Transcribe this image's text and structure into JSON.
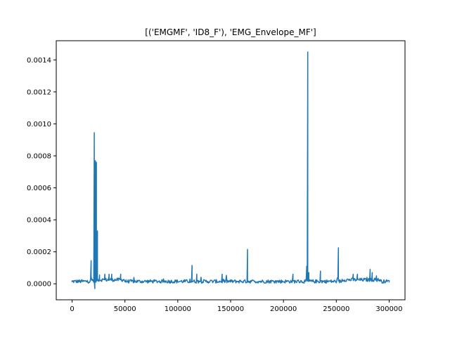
{
  "chart_data": {
    "type": "line",
    "title": "[('EMGMF', 'ID8_F'), 'EMG_Envelope_MF']",
    "xlabel": "",
    "ylabel": "",
    "xlim": [
      -15000,
      315000
    ],
    "ylim": [
      -0.0001,
      0.00152
    ],
    "x_ticks": [
      0,
      50000,
      100000,
      150000,
      200000,
      250000,
      300000
    ],
    "x_tick_labels": [
      "0",
      "50000",
      "100000",
      "150000",
      "200000",
      "250000",
      "300000"
    ],
    "y_ticks": [
      0.0,
      0.0002,
      0.0004,
      0.0006,
      0.0008,
      0.001,
      0.0012,
      0.0014
    ],
    "y_tick_labels": [
      "0.0000",
      "0.0002",
      "0.0004",
      "0.0006",
      "0.0008",
      "0.0010",
      "0.0012",
      "0.0014"
    ],
    "grid": false,
    "legend": "none",
    "colors": {
      "line": "#1f77b4",
      "axes": "#000000",
      "background": "#ffffff"
    },
    "series": [
      {
        "baseline": 1.5e-05,
        "x_start": 0,
        "x_end": 300000,
        "points": [
          [
            0,
            1e-05
          ],
          [
            18000,
            0.000145
          ],
          [
            19000,
            2e-05
          ],
          [
            20500,
            1e-05
          ],
          [
            21000,
            0.000945
          ],
          [
            21500,
            -3e-05
          ],
          [
            22000,
            0.00077
          ],
          [
            22500,
            1e-05
          ],
          [
            23000,
            0.00076
          ],
          [
            23500,
            2e-05
          ],
          [
            24000,
            0.00033
          ],
          [
            24500,
            2e-05
          ],
          [
            26000,
            5.5e-05
          ],
          [
            31000,
            6e-05
          ],
          [
            35000,
            6e-05
          ],
          [
            37500,
            6e-05
          ],
          [
            46000,
            6e-05
          ],
          [
            113500,
            0.000115
          ],
          [
            118000,
            6e-05
          ],
          [
            142000,
            6e-05
          ],
          [
            166000,
            0.000215
          ],
          [
            209000,
            6e-05
          ],
          [
            222000,
            0.00011
          ],
          [
            223000,
            0.00145
          ],
          [
            224000,
            7e-05
          ],
          [
            235000,
            8e-05
          ],
          [
            252000,
            0.000225
          ],
          [
            266000,
            6e-05
          ],
          [
            270000,
            6e-05
          ],
          [
            279000,
            4e-05
          ],
          [
            282000,
            9e-05
          ],
          [
            284000,
            7e-05
          ],
          [
            288000,
            5e-05
          ],
          [
            300000,
            2e-05
          ]
        ]
      }
    ]
  }
}
